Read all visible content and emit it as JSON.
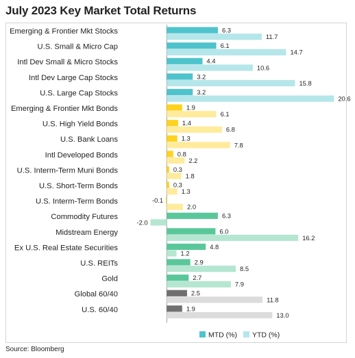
{
  "title": "July 2023 Key Market Total Returns",
  "source": "Source: Bloomberg",
  "chart_data": {
    "type": "bar",
    "orientation": "horizontal",
    "categories": [
      "Emerging & Frontier Mkt Stocks",
      "U.S. Small & Micro Cap",
      "Intl Dev Small & Micro Stocks",
      "Intl Dev Large Cap Stocks",
      "U.S. Large Cap Stocks",
      "Emerging & Frontier Mkt Bonds",
      "U.S. High Yield Bonds",
      "U.S. Bank Loans",
      "Intl Developed Bonds",
      "U.S. Interm-Term Muni Bonds",
      "U.S. Short-Term Bonds",
      "U.S. Interm-Term Bonds",
      "Commodity Futures",
      "Midstream Energy",
      "Ex U.S. Real Estate Securities",
      "U.S. REITs",
      "Gold",
      "Global 60/40",
      "U.S. 60/40"
    ],
    "series": [
      {
        "name": "MTD (%)",
        "values": [
          6.3,
          6.1,
          4.4,
          3.2,
          3.2,
          1.9,
          1.4,
          1.3,
          0.8,
          0.3,
          0.3,
          -0.1,
          6.3,
          6.0,
          4.8,
          2.9,
          2.7,
          2.5,
          1.9
        ]
      },
      {
        "name": "YTD (%)",
        "values": [
          11.7,
          14.7,
          10.6,
          15.8,
          20.6,
          6.1,
          6.8,
          7.8,
          2.2,
          1.8,
          1.3,
          2.0,
          -2.0,
          16.2,
          1.2,
          8.5,
          7.9,
          11.8,
          13.0
        ]
      }
    ],
    "value_labels": {
      "mtd": [
        "6.3",
        "6.1",
        "4.4",
        "3.2",
        "3.2",
        "1.9",
        "1.4",
        "1.3",
        "0.8",
        "0.3",
        "0.3",
        "-0.1",
        "6.3",
        "6.0",
        "4.8",
        "2.9",
        "2.7",
        "2.5",
        "1.9"
      ],
      "ytd": [
        "11.7",
        "14.7",
        "10.6",
        "15.8",
        "20.6",
        "6.1",
        "6.8",
        "7.8",
        "2.2",
        "1.8",
        "1.3",
        "2.0",
        "-2.0",
        "16.2",
        "1.2",
        "8.5",
        "7.9",
        "11.8",
        "13.0"
      ]
    },
    "groups": [
      "equity",
      "equity",
      "equity",
      "equity",
      "equity",
      "bond",
      "bond",
      "bond",
      "bond",
      "bond",
      "bond",
      "bond",
      "real",
      "real",
      "real",
      "real",
      "real",
      "balanced",
      "balanced"
    ],
    "colors": {
      "equity": {
        "mtd": "#4fc3cc",
        "ytd": "#b5e6ea"
      },
      "bond": {
        "mtd": "#ffd21f",
        "ytd": "#ffeb9c"
      },
      "real": {
        "mtd": "#5ac79a",
        "ytd": "#b5e6d1"
      },
      "balanced": {
        "mtd": "#707070",
        "ytd": "#dcdcdc"
      },
      "legend_mtd": "#4fc3cc",
      "legend_ytd": "#b5e6ea",
      "axis": "#9a9a9a"
    },
    "xlim": [
      -4.5,
      21.5
    ],
    "legend": {
      "position": "bottom",
      "entries": [
        "MTD (%)",
        "YTD (%)"
      ]
    },
    "grid": false
  }
}
